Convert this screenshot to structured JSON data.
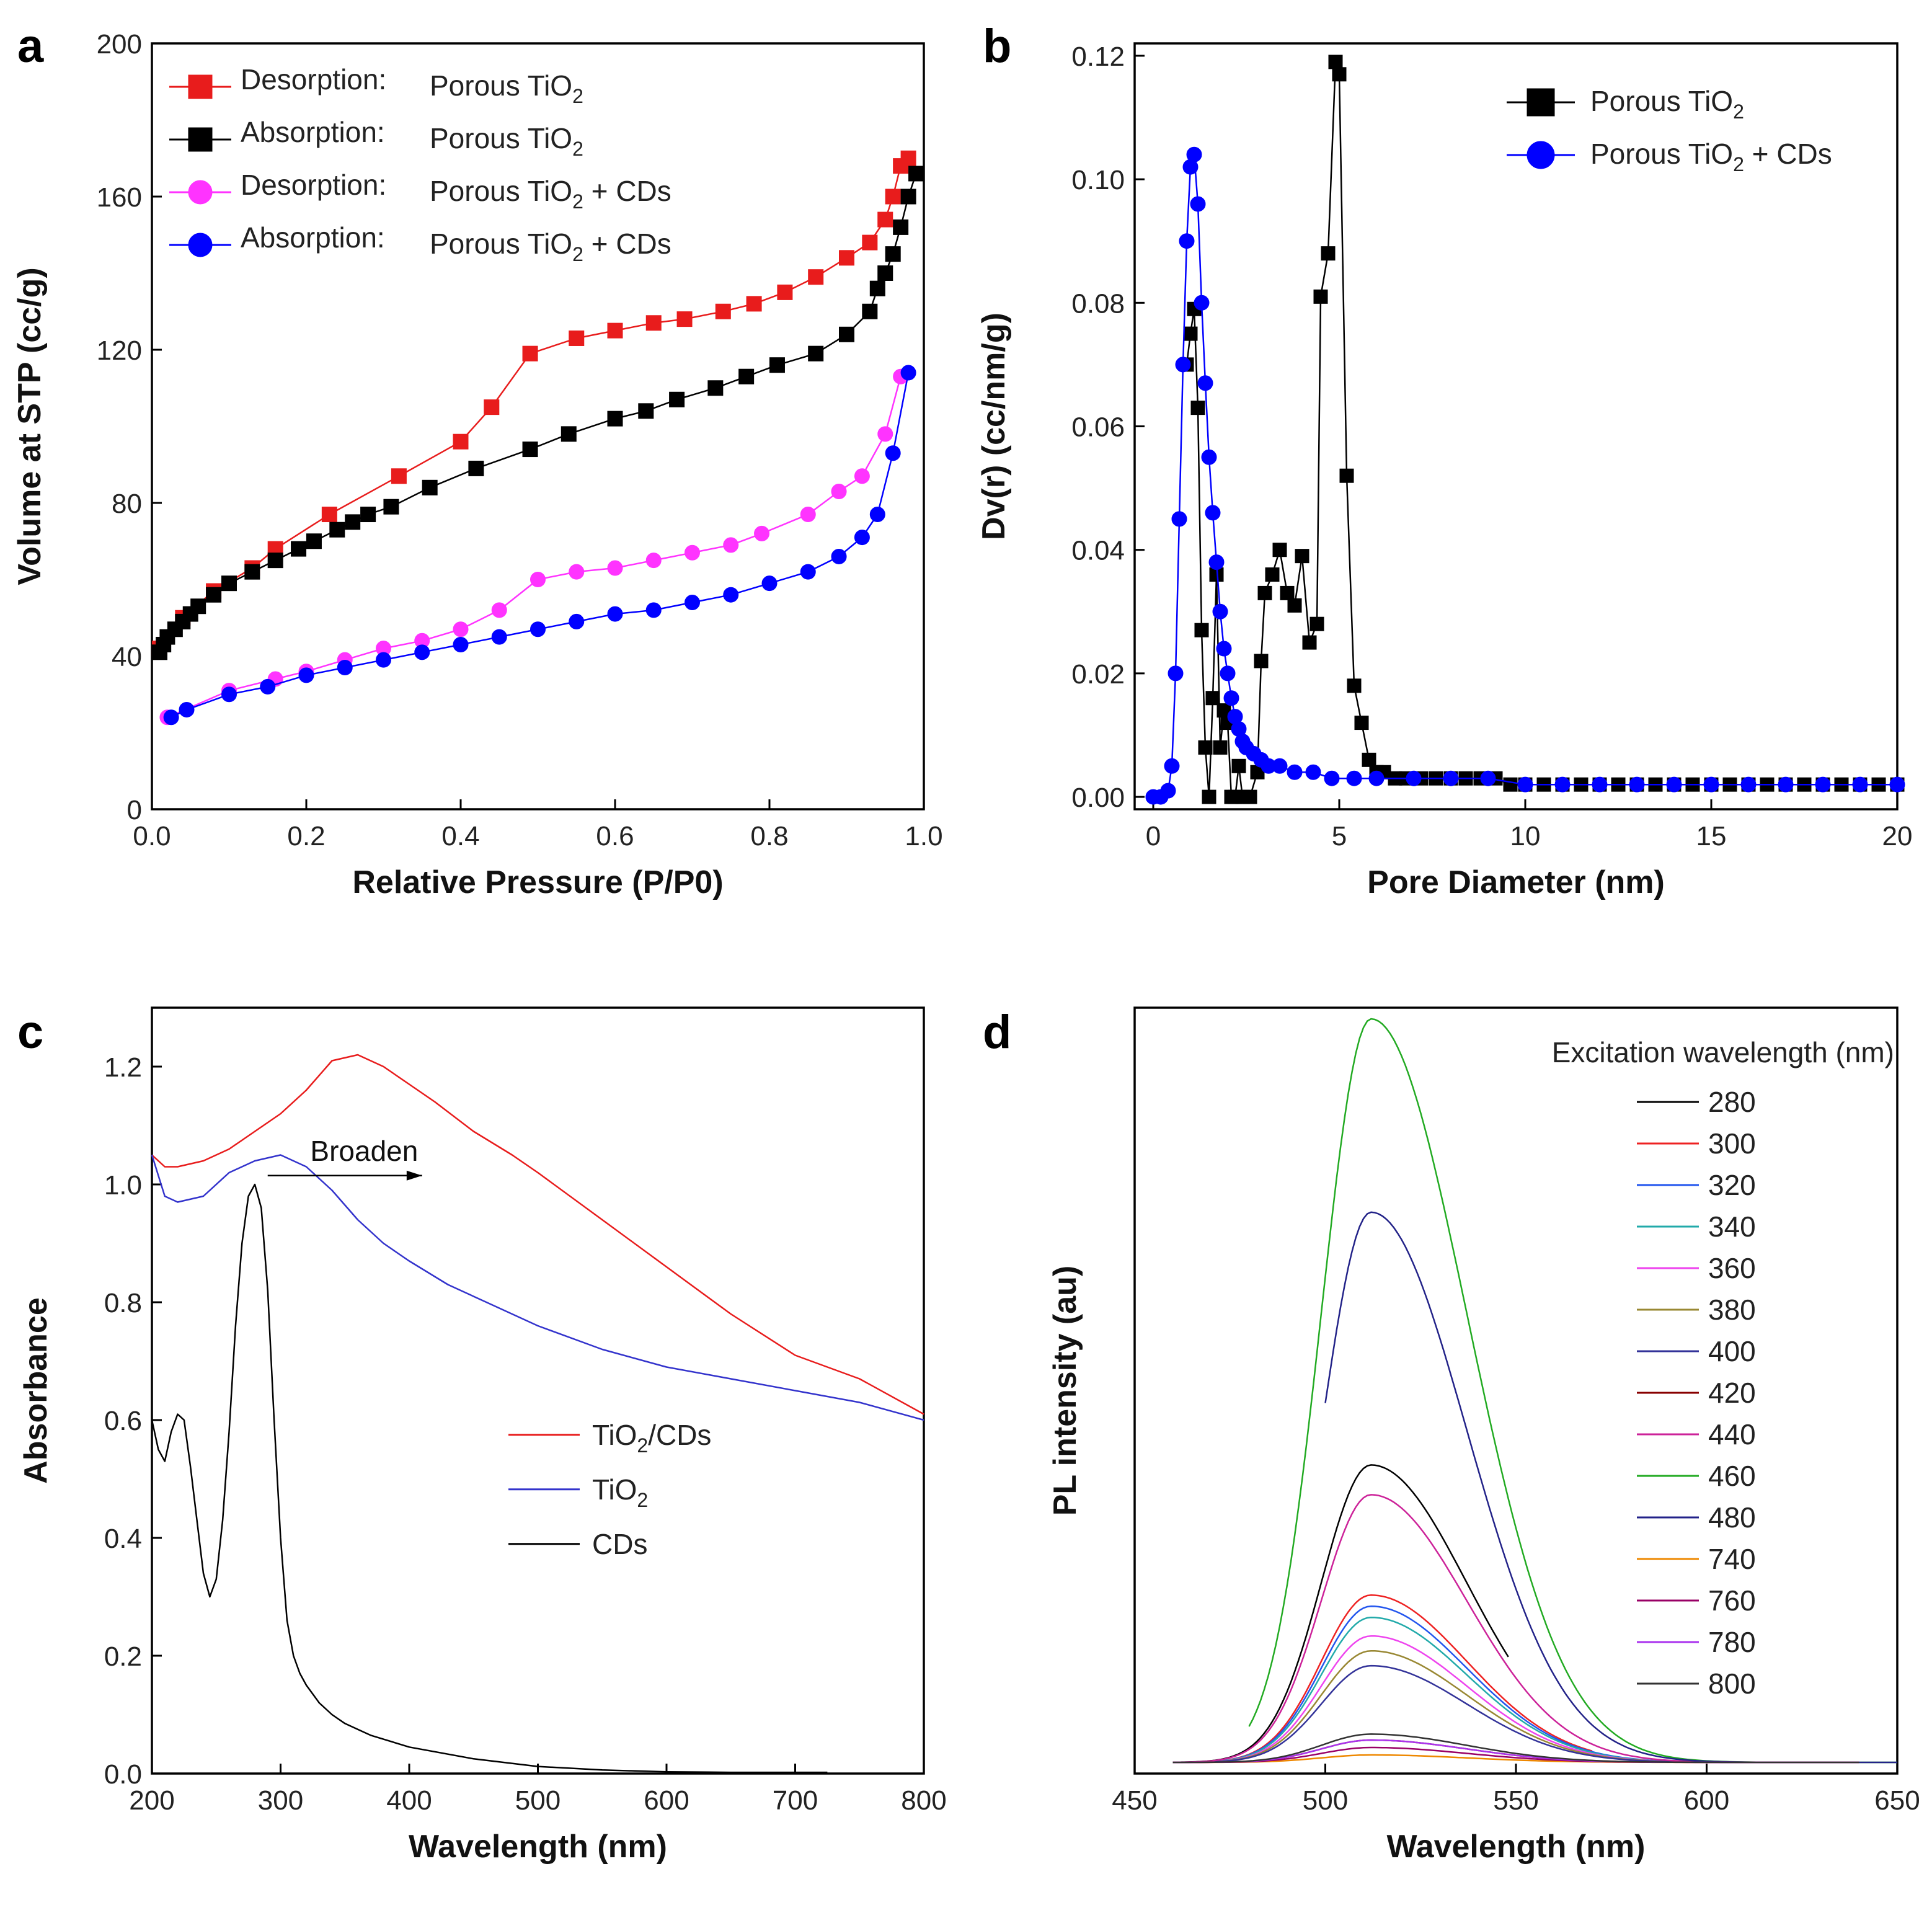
{
  "chart_data": [
    {
      "panel": "a",
      "type": "line",
      "xlabel": "Relative Pressure (P/P0)",
      "ylabel": "Volume at STP (cc/g)",
      "xlim": [
        0,
        1.0
      ],
      "ylim": [
        0,
        200
      ],
      "xticks": [
        0.0,
        0.2,
        0.4,
        0.6,
        0.8,
        1.0
      ],
      "xtick_labels": [
        "0.0",
        "0.2",
        "0.4",
        "0.6",
        "0.8",
        "1.0"
      ],
      "yticks": [
        0,
        40,
        80,
        120,
        160,
        200
      ],
      "ytick_labels": [
        "0",
        "40",
        "80",
        "120",
        "160",
        "200"
      ],
      "legend_location": "top-left",
      "series": [
        {
          "name": "Desorption: Porous TiO2",
          "label_kind": "Desorption:",
          "label_sample": "Porous TiO",
          "label_suffix": "",
          "marker": "square",
          "color": "#e81c1c",
          "x": [
            0.01,
            0.04,
            0.08,
            0.13,
            0.16,
            0.23,
            0.32,
            0.4,
            0.44,
            0.49,
            0.55,
            0.6,
            0.65,
            0.69,
            0.74,
            0.78,
            0.82,
            0.86,
            0.9,
            0.93,
            0.95,
            0.96,
            0.97,
            0.98
          ],
          "y": [
            42,
            50,
            57,
            63,
            68,
            77,
            87,
            96,
            105,
            119,
            123,
            125,
            127,
            128,
            130,
            132,
            135,
            139,
            144,
            148,
            154,
            160,
            168,
            170
          ]
        },
        {
          "name": "Absorption: Porous TiO2",
          "label_kind": "Absorption:",
          "label_sample": "Porous TiO",
          "label_suffix": "",
          "marker": "square",
          "color": "#000000",
          "x": [
            0.01,
            0.015,
            0.02,
            0.03,
            0.04,
            0.05,
            0.06,
            0.08,
            0.1,
            0.13,
            0.16,
            0.19,
            0.21,
            0.24,
            0.26,
            0.28,
            0.31,
            0.36,
            0.42,
            0.49,
            0.54,
            0.6,
            0.64,
            0.68,
            0.73,
            0.77,
            0.81,
            0.86,
            0.9,
            0.93,
            0.94,
            0.95,
            0.96,
            0.97,
            0.98,
            0.99
          ],
          "y": [
            41,
            43,
            45,
            47,
            49,
            51,
            53,
            56,
            59,
            62,
            65,
            68,
            70,
            73,
            75,
            77,
            79,
            84,
            89,
            94,
            98,
            102,
            104,
            107,
            110,
            113,
            116,
            119,
            124,
            130,
            136,
            140,
            145,
            152,
            160,
            166
          ]
        },
        {
          "name": "Desorption: Porous TiO2 + CDs",
          "label_kind": "Desorption:",
          "label_sample": "Porous TiO",
          "label_suffix": " + CDs",
          "marker": "circle",
          "color": "#ff33ff",
          "x": [
            0.02,
            0.1,
            0.16,
            0.2,
            0.25,
            0.3,
            0.35,
            0.4,
            0.45,
            0.5,
            0.55,
            0.6,
            0.65,
            0.7,
            0.75,
            0.79,
            0.85,
            0.89,
            0.92,
            0.95,
            0.97
          ],
          "y": [
            24,
            31,
            34,
            36,
            39,
            42,
            44,
            47,
            52,
            60,
            62,
            63,
            65,
            67,
            69,
            72,
            77,
            83,
            87,
            98,
            113
          ]
        },
        {
          "name": "Absorption: Porous TiO2 + CDs",
          "label_kind": "Absorption:",
          "label_sample": "Porous TiO",
          "label_suffix": " + CDs",
          "marker": "circle",
          "color": "#0000ff",
          "x": [
            0.025,
            0.045,
            0.1,
            0.15,
            0.2,
            0.25,
            0.3,
            0.35,
            0.4,
            0.45,
            0.5,
            0.55,
            0.6,
            0.65,
            0.7,
            0.75,
            0.8,
            0.85,
            0.89,
            0.92,
            0.94,
            0.96,
            0.98
          ],
          "y": [
            24,
            26,
            30,
            32,
            35,
            37,
            39,
            41,
            43,
            45,
            47,
            49,
            51,
            52,
            54,
            56,
            59,
            62,
            66,
            71,
            77,
            93,
            114
          ]
        }
      ]
    },
    {
      "panel": "b",
      "type": "line",
      "xlabel": "Pore Diameter (nm)",
      "ylabel": "Dv(r) (cc/nm/g)",
      "xlim": [
        -0.5,
        20
      ],
      "ylim": [
        -0.002,
        0.122
      ],
      "xticks": [
        0,
        5,
        10,
        15,
        20
      ],
      "xtick_labels": [
        "0",
        "5",
        "10",
        "15",
        "20"
      ],
      "yticks": [
        0.0,
        0.02,
        0.04,
        0.06,
        0.08,
        0.1,
        0.12
      ],
      "ytick_labels": [
        "0.00",
        "0.02",
        "0.04",
        "0.06",
        "0.08",
        "0.10",
        "0.12"
      ],
      "legend_location": "top-right",
      "series": [
        {
          "name": "Porous TiO2",
          "label_sample": "Porous TiO",
          "label_suffix": "",
          "marker": "square",
          "color": "#000000",
          "x": [
            0.9,
            1.0,
            1.1,
            1.2,
            1.3,
            1.4,
            1.5,
            1.6,
            1.7,
            1.8,
            1.9,
            2.0,
            2.1,
            2.2,
            2.3,
            2.4,
            2.6,
            2.8,
            2.9,
            3.0,
            3.2,
            3.4,
            3.6,
            3.8,
            4.0,
            4.2,
            4.4,
            4.5,
            4.7,
            4.9,
            5.0,
            5.2,
            5.4,
            5.6,
            5.8,
            6.0,
            6.2,
            6.5,
            6.8,
            7.2,
            7.6,
            8.0,
            8.4,
            8.8,
            9.2,
            9.6,
            10.0,
            10.5,
            11.0,
            11.5,
            12.0,
            12.5,
            13.0,
            13.5,
            14.0,
            14.5,
            15.0,
            15.5,
            16.0,
            16.5,
            17.0,
            17.5,
            18.0,
            18.5,
            19.0,
            19.5,
            20.0
          ],
          "y": [
            0.07,
            0.075,
            0.079,
            0.063,
            0.027,
            0.008,
            0.0,
            0.016,
            0.036,
            0.008,
            0.014,
            0.012,
            0.0,
            0.0,
            0.005,
            0.0,
            0.0,
            0.004,
            0.022,
            0.033,
            0.036,
            0.04,
            0.033,
            0.031,
            0.039,
            0.025,
            0.028,
            0.081,
            0.088,
            0.119,
            0.117,
            0.052,
            0.018,
            0.012,
            0.006,
            0.004,
            0.004,
            0.003,
            0.003,
            0.003,
            0.003,
            0.003,
            0.003,
            0.003,
            0.003,
            0.002,
            0.002,
            0.002,
            0.002,
            0.002,
            0.002,
            0.002,
            0.002,
            0.002,
            0.002,
            0.002,
            0.002,
            0.002,
            0.002,
            0.002,
            0.002,
            0.002,
            0.002,
            0.002,
            0.002,
            0.002,
            0.002
          ]
        },
        {
          "name": "Porous TiO2 + CDs",
          "label_sample": "Porous TiO",
          "label_suffix": " + CDs",
          "marker": "circle",
          "color": "#0000ff",
          "x": [
            0.0,
            0.2,
            0.4,
            0.5,
            0.6,
            0.7,
            0.8,
            0.9,
            1.0,
            1.1,
            1.2,
            1.3,
            1.4,
            1.5,
            1.6,
            1.7,
            1.8,
            1.9,
            2.0,
            2.1,
            2.2,
            2.3,
            2.4,
            2.5,
            2.7,
            2.9,
            3.1,
            3.4,
            3.8,
            4.3,
            4.8,
            5.4,
            6.0,
            7.0,
            8.0,
            9.0,
            10.0,
            11.0,
            12.0,
            13.0,
            14.0,
            15.0,
            16.0,
            17.0,
            18.0,
            19.0,
            20.0
          ],
          "y": [
            0.0,
            0.0,
            0.001,
            0.005,
            0.02,
            0.045,
            0.07,
            0.09,
            0.102,
            0.104,
            0.096,
            0.08,
            0.067,
            0.055,
            0.046,
            0.038,
            0.03,
            0.024,
            0.02,
            0.016,
            0.013,
            0.011,
            0.009,
            0.008,
            0.007,
            0.006,
            0.005,
            0.005,
            0.004,
            0.004,
            0.003,
            0.003,
            0.003,
            0.003,
            0.003,
            0.003,
            0.002,
            0.002,
            0.002,
            0.002,
            0.002,
            0.002,
            0.002,
            0.002,
            0.002,
            0.002,
            0.002
          ]
        }
      ]
    },
    {
      "panel": "c",
      "type": "line",
      "xlabel": "Wavelength (nm)",
      "ylabel": "Absorbance",
      "xlim": [
        200,
        800
      ],
      "ylim": [
        0,
        1.3
      ],
      "xticks": [
        200,
        300,
        400,
        500,
        600,
        700,
        800
      ],
      "xtick_labels": [
        "200",
        "300",
        "400",
        "500",
        "600",
        "700",
        "800"
      ],
      "yticks": [
        0.0,
        0.2,
        0.4,
        0.6,
        0.8,
        1.0,
        1.2
      ],
      "ytick_labels": [
        "0.0",
        "0.2",
        "0.4",
        "0.6",
        "0.8",
        "1.0",
        "1.2"
      ],
      "legend_location": "center",
      "annotation": "Broaden",
      "series": [
        {
          "name": "TiO2/CDs",
          "label_sample": "TiO",
          "label_suffix": "/CDs",
          "color": "#e81c1c",
          "x": [
            200,
            210,
            220,
            240,
            260,
            280,
            300,
            320,
            340,
            360,
            380,
            400,
            420,
            450,
            480,
            500,
            550,
            600,
            650,
            700,
            750,
            800
          ],
          "y": [
            1.05,
            1.03,
            1.03,
            1.04,
            1.06,
            1.09,
            1.12,
            1.16,
            1.21,
            1.22,
            1.2,
            1.17,
            1.14,
            1.09,
            1.05,
            1.02,
            0.94,
            0.86,
            0.78,
            0.71,
            0.67,
            0.61
          ]
        },
        {
          "name": "TiO2",
          "label_sample": "TiO",
          "label_suffix": "",
          "color": "#3333cc",
          "x": [
            200,
            210,
            220,
            240,
            260,
            280,
            300,
            320,
            340,
            360,
            380,
            400,
            430,
            460,
            500,
            550,
            600,
            650,
            700,
            750,
            800
          ],
          "y": [
            1.05,
            0.98,
            0.97,
            0.98,
            1.02,
            1.04,
            1.05,
            1.03,
            0.99,
            0.94,
            0.9,
            0.87,
            0.83,
            0.8,
            0.76,
            0.72,
            0.69,
            0.67,
            0.65,
            0.63,
            0.6
          ]
        },
        {
          "name": "CDs",
          "label_sample": "CDs",
          "label_suffix": "",
          "color": "#000000",
          "x": [
            200,
            205,
            210,
            215,
            220,
            225,
            230,
            235,
            240,
            245,
            250,
            255,
            260,
            265,
            270,
            275,
            280,
            285,
            290,
            295,
            300,
            305,
            310,
            315,
            320,
            330,
            340,
            350,
            370,
            400,
            450,
            500,
            550,
            600,
            650,
            700,
            725
          ],
          "y": [
            0.6,
            0.55,
            0.53,
            0.58,
            0.61,
            0.6,
            0.52,
            0.43,
            0.34,
            0.3,
            0.33,
            0.43,
            0.58,
            0.76,
            0.9,
            0.98,
            1.0,
            0.96,
            0.82,
            0.6,
            0.4,
            0.26,
            0.2,
            0.17,
            0.15,
            0.12,
            0.1,
            0.085,
            0.065,
            0.045,
            0.025,
            0.012,
            0.006,
            0.003,
            0.002,
            0.002,
            0.002
          ]
        }
      ]
    },
    {
      "panel": "d",
      "type": "line",
      "xlabel": "Wavelength (nm)",
      "ylabel": "PL intensity (au)",
      "xlim": [
        450,
        650
      ],
      "ylim": [
        0,
        1.0
      ],
      "xticks": [
        450,
        500,
        550,
        600,
        650
      ],
      "xtick_labels": [
        "450",
        "500",
        "550",
        "600",
        "650"
      ],
      "legend_title": "Excitation wavelength (nm)",
      "legend_location": "top-right",
      "series": [
        {
          "name": "280",
          "color": "#000000",
          "peak": 0.4,
          "start": 460,
          "end": 548
        },
        {
          "name": "300",
          "color": "#ee2222",
          "peak": 0.225,
          "start": 460,
          "end": 570
        },
        {
          "name": "320",
          "color": "#2255ee",
          "peak": 0.21,
          "start": 460,
          "end": 640
        },
        {
          "name": "340",
          "color": "#22aaaa",
          "peak": 0.195,
          "start": 460,
          "end": 640
        },
        {
          "name": "360",
          "color": "#ee44ee",
          "peak": 0.17,
          "start": 460,
          "end": 640
        },
        {
          "name": "380",
          "color": "#998833",
          "peak": 0.15,
          "start": 460,
          "end": 640
        },
        {
          "name": "400",
          "color": "#333399",
          "peak": 0.13,
          "start": 460,
          "end": 640
        },
        {
          "name": "420",
          "color": "#880000",
          "peak": 0.03,
          "start": 460,
          "end": 640
        },
        {
          "name": "440",
          "color": "#cc2299",
          "peak": 0.36,
          "start": 460,
          "end": 640
        },
        {
          "name": "460",
          "color": "#22aa22",
          "peak": 1.0,
          "start": 480,
          "end": 650
        },
        {
          "name": "480",
          "color": "#222288",
          "peak": 0.74,
          "start": 500,
          "end": 650
        },
        {
          "name": "740",
          "color": "#ee8800",
          "peak": 0.01,
          "start": 460,
          "end": 640
        },
        {
          "name": "760",
          "color": "#990066",
          "peak": 0.02,
          "start": 460,
          "end": 640
        },
        {
          "name": "780",
          "color": "#aa33ee",
          "peak": 0.03,
          "start": 460,
          "end": 640
        },
        {
          "name": "800",
          "color": "#333333",
          "peak": 0.038,
          "start": 460,
          "end": 640
        }
      ]
    }
  ]
}
